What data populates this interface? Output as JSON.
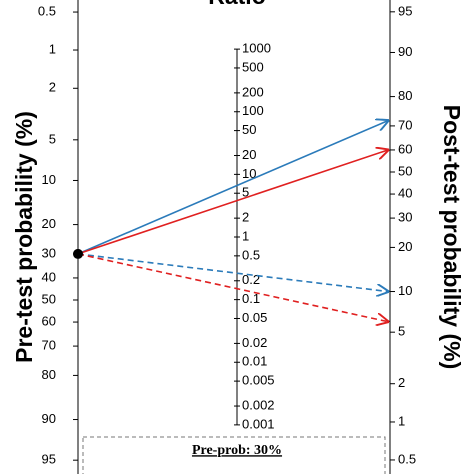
{
  "chart_data": {
    "type": "nomogram",
    "title": "Ratio",
    "left_axis": {
      "title": "Pre-test probability (%)",
      "ticks": [
        0.5,
        1,
        2,
        5,
        10,
        20,
        30,
        40,
        50,
        60,
        70,
        80,
        90,
        95
      ]
    },
    "middle_axis": {
      "ticks": [
        1000,
        500,
        200,
        100,
        50,
        20,
        10,
        5,
        2,
        1,
        0.5,
        0.2,
        0.1,
        0.05,
        0.02,
        0.01,
        0.005,
        0.002,
        0.001
      ]
    },
    "right_axis": {
      "title": "Post-test probability (%)",
      "ticks": [
        95,
        90,
        80,
        70,
        60,
        50,
        40,
        30,
        20,
        10,
        5,
        2,
        1,
        0.5
      ]
    },
    "pre_test_probability": 30,
    "lines": [
      {
        "color": "#2b7bba",
        "dash": false,
        "post_test_probability": 72
      },
      {
        "color": "#e02020",
        "dash": false,
        "post_test_probability": 60
      },
      {
        "color": "#2b7bba",
        "dash": true,
        "post_test_probability": 10
      },
      {
        "color": "#e02020",
        "dash": true,
        "post_test_probability": 6
      }
    ],
    "legend": {
      "title": "Pre-prob: 30%"
    }
  }
}
